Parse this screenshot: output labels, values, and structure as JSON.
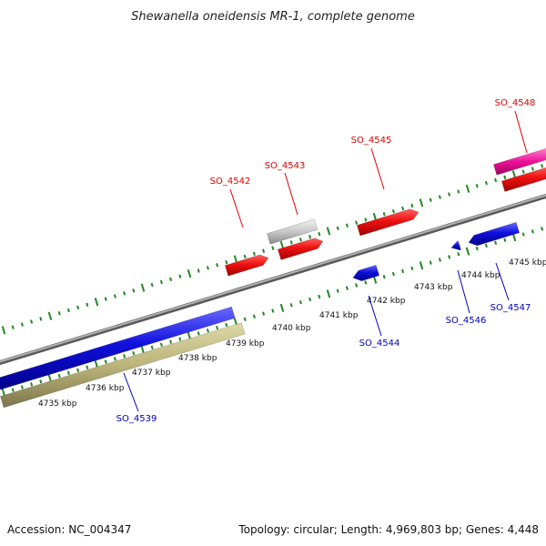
{
  "title": "Shewanella oneidensis MR-1, complete genome",
  "footer": {
    "accession": "Accession: NC_004347",
    "summary": "Topology: circular; Length: 4,969,803 bp; Genes: 4,448"
  },
  "colors": {
    "forward_label": "#dd0000",
    "reverse_label": "#0000bb",
    "tick": "#228822",
    "backbone": "#888888"
  },
  "scale": {
    "unit": "kbp",
    "labels": [
      "4735 kbp",
      "4736 kbp",
      "4737 kbp",
      "4738 kbp",
      "4739 kbp",
      "4740 kbp",
      "4741 kbp",
      "4742 kbp",
      "4743 kbp",
      "4744 kbp",
      "4745 kbp"
    ]
  },
  "genes": [
    {
      "id": "SO_4539",
      "strand": "reverse",
      "color": "#1010dd"
    },
    {
      "id": "SO_4542",
      "strand": "forward",
      "color": "#ee1111"
    },
    {
      "id": "SO_4543",
      "strand": "forward",
      "color": "#ee1111"
    },
    {
      "id": "SO_4544",
      "strand": "reverse",
      "color": "#1010dd"
    },
    {
      "id": "SO_4545",
      "strand": "forward",
      "color": "#ee1111"
    },
    {
      "id": "SO_4546",
      "strand": "reverse",
      "color": "#1010dd"
    },
    {
      "id": "SO_4547",
      "strand": "reverse",
      "color": "#1010dd"
    },
    {
      "id": "SO_4548",
      "strand": "forward",
      "color": "#ee1188"
    }
  ]
}
